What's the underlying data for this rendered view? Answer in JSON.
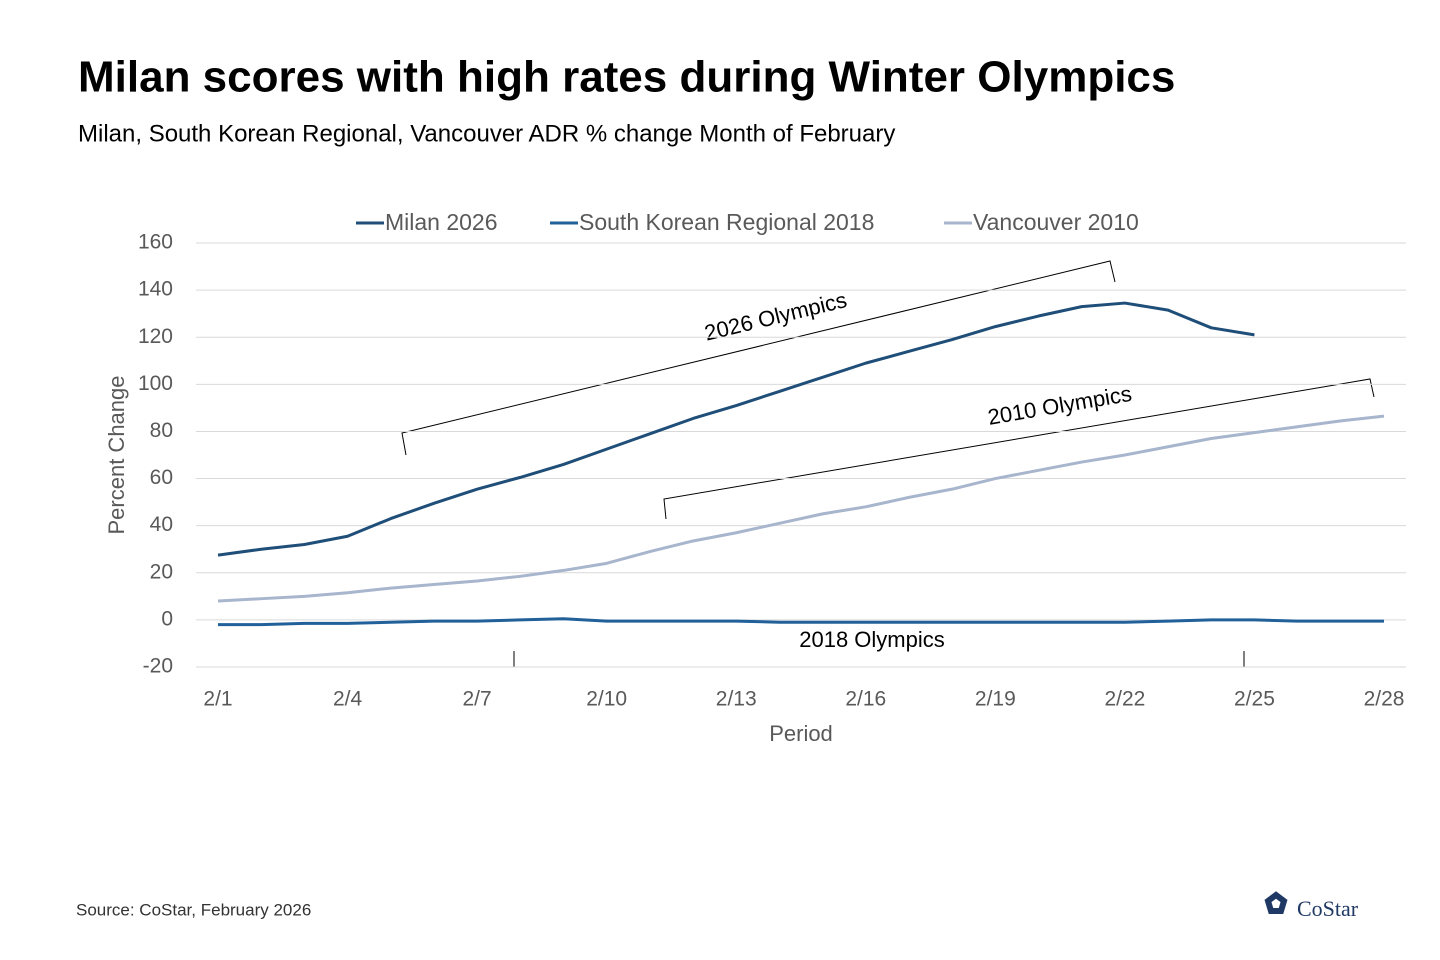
{
  "chart_data": {
    "type": "line",
    "title": "Milan scores with high rates during Winter Olympics",
    "subtitle": "Milan, South Korean Regional, Vancouver ADR % change Month of February",
    "x_label": "Period",
    "y_label": "Percent Change",
    "categories": [
      "2/1",
      null,
      null,
      "2/4",
      null,
      null,
      "2/7",
      null,
      null,
      "2/10",
      null,
      null,
      "2/13",
      null,
      null,
      "2/16",
      null,
      null,
      "2/19",
      null,
      null,
      "2/22",
      null,
      null,
      "2/25",
      null,
      null,
      "2/28"
    ],
    "series": [
      {
        "name": "Milan 2026",
        "color": "#1f4e79",
        "values": [
          27.5,
          30,
          32,
          35.5,
          43,
          49.5,
          55.5,
          60.5,
          66,
          72.5,
          79,
          85.5,
          91,
          97,
          103,
          109,
          114,
          119,
          124.5,
          129,
          133,
          134.5,
          131.5,
          124,
          121,
          null,
          null,
          null
        ]
      },
      {
        "name": "South Korean Regional 2018",
        "color": "#22609a",
        "values": [
          -2,
          -2,
          -1.5,
          -1.5,
          -1,
          -0.5,
          -0.5,
          0,
          0.5,
          -0.5,
          -0.5,
          -0.5,
          -0.5,
          -1,
          -1,
          -1,
          -1,
          -1,
          -1,
          -1,
          -1,
          -1,
          -0.5,
          0,
          0,
          -0.5,
          -0.5,
          -0.5
        ]
      },
      {
        "name": "Vancouver 2010",
        "color": "#a7b5cd",
        "values": [
          8,
          9,
          10,
          11.5,
          13.5,
          15,
          16.5,
          18.5,
          21,
          24,
          29,
          33.5,
          37,
          41,
          45,
          48,
          52,
          55.5,
          60,
          63.5,
          67,
          70,
          73.5,
          77,
          79.5,
          82,
          84.5,
          86.5
        ]
      }
    ],
    "ylim": [
      -20,
      160
    ],
    "yticks": [
      -20,
      0,
      20,
      40,
      60,
      80,
      100,
      120,
      140,
      160
    ],
    "grid": true,
    "legend": "top",
    "annotations": [
      "2026 Olympics",
      "2010 Olympics",
      "2018 Olympics"
    ],
    "source": "Source: CoStar, February 2026",
    "logo": "CoStar"
  }
}
